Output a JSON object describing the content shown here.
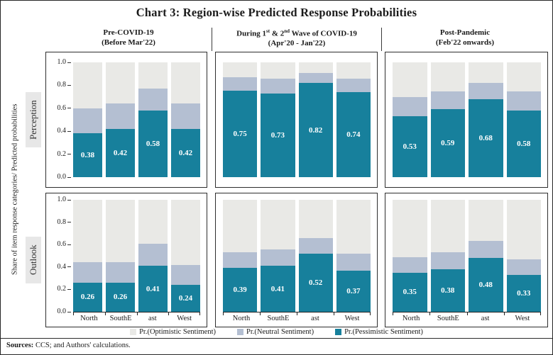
{
  "title": "Chart 3: Region-wise Predicted Response Probabilities",
  "y_axis_label": "Share of item response categories/ Predicted probabilities",
  "columns": [
    {
      "title_parts": [
        {
          "text": "Pre-COVID-19"
        }
      ],
      "subtitle": "(Before Mar'22)"
    },
    {
      "title_parts": [
        {
          "text": "During 1"
        },
        {
          "text": "st",
          "sup": true
        },
        {
          "text": " & 2"
        },
        {
          "text": "nd",
          "sup": true
        },
        {
          "text": " Wave of COVID-19"
        }
      ],
      "subtitle": "(Apr'20 - Jan'22)"
    },
    {
      "title_parts": [
        {
          "text": "Post-Pandemic"
        }
      ],
      "subtitle": "(Feb'22 onwards)"
    }
  ],
  "legend": [
    {
      "series": "optimistic",
      "label": "Pr.(Optimistic Sentiment)",
      "color": "#E9E9E6"
    },
    {
      "series": "neutral",
      "label": "Pr.(Neutral Sentiment)",
      "color": "#B4BFD2"
    },
    {
      "series": "pessimistic",
      "label": "Pr.(Pessimistic Sentiment)",
      "color": "#17809C"
    }
  ],
  "sources_label": "Sources:",
  "sources_text": " CCS; and Authors' calculations.",
  "chart_data": {
    "type": "bar",
    "stacked": true,
    "categories": [
      "North",
      "SouthE",
      "ast",
      "West"
    ],
    "ylim": [
      0,
      1.0
    ],
    "yticks": [
      0.0,
      0.2,
      0.4,
      0.6,
      0.8,
      1.0
    ],
    "grid": false,
    "legend_position": "bottom",
    "value_labels_series": "pessimistic",
    "rows": [
      {
        "label": "Perception",
        "panels": [
          {
            "series": {
              "pessimistic": [
                0.38,
                0.42,
                0.58,
                0.42
              ],
              "neutral": [
                0.22,
                0.22,
                0.19,
                0.22
              ],
              "optimistic": [
                0.4,
                0.36,
                0.23,
                0.36
              ]
            }
          },
          {
            "series": {
              "pessimistic": [
                0.75,
                0.73,
                0.82,
                0.74
              ],
              "neutral": [
                0.12,
                0.13,
                0.09,
                0.12
              ],
              "optimistic": [
                0.13,
                0.14,
                0.09,
                0.14
              ]
            }
          },
          {
            "series": {
              "pessimistic": [
                0.53,
                0.59,
                0.68,
                0.58
              ],
              "neutral": [
                0.17,
                0.16,
                0.14,
                0.17
              ],
              "optimistic": [
                0.3,
                0.25,
                0.18,
                0.25
              ]
            }
          }
        ]
      },
      {
        "label": "Outlook",
        "panels": [
          {
            "series": {
              "pessimistic": [
                0.26,
                0.26,
                0.41,
                0.24
              ],
              "neutral": [
                0.18,
                0.18,
                0.2,
                0.18
              ],
              "optimistic": [
                0.56,
                0.56,
                0.39,
                0.58
              ]
            }
          },
          {
            "series": {
              "pessimistic": [
                0.39,
                0.41,
                0.52,
                0.37
              ],
              "neutral": [
                0.14,
                0.15,
                0.14,
                0.15
              ],
              "optimistic": [
                0.47,
                0.44,
                0.34,
                0.48
              ]
            }
          },
          {
            "series": {
              "pessimistic": [
                0.35,
                0.38,
                0.48,
                0.33
              ],
              "neutral": [
                0.14,
                0.15,
                0.15,
                0.14
              ],
              "optimistic": [
                0.51,
                0.47,
                0.37,
                0.53
              ]
            }
          }
        ]
      }
    ]
  }
}
